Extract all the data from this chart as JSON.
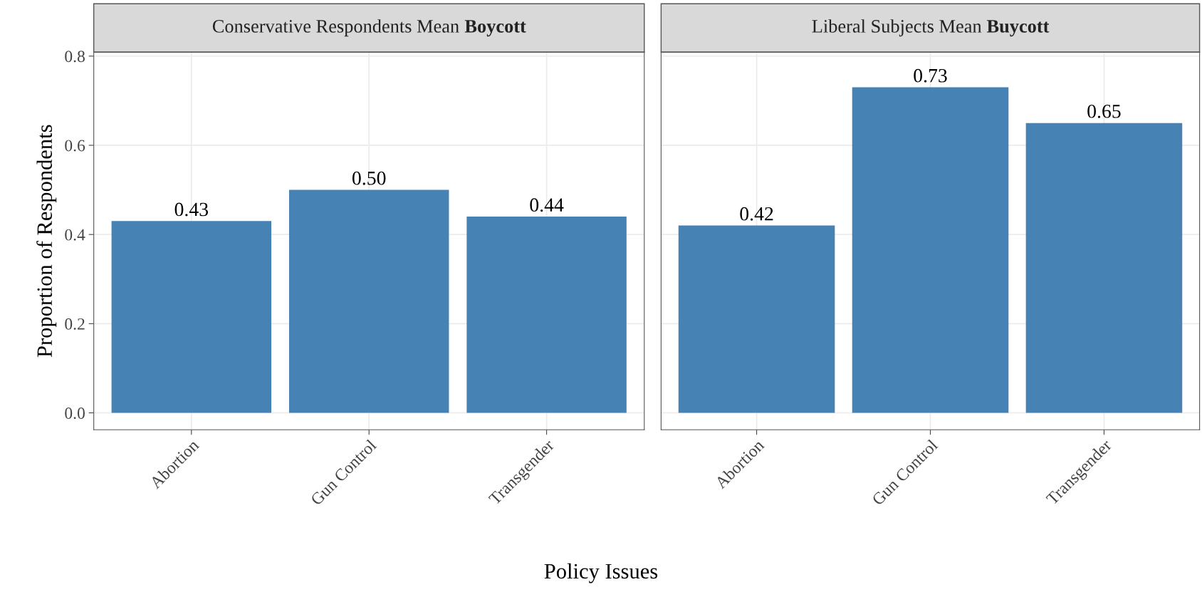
{
  "chart_data": [
    {
      "type": "bar",
      "title": "Conservative Respondents Mean Boycott",
      "xlabel": "Policy Issues",
      "ylabel": "Proportion of Respondents",
      "categories": [
        "Abortion",
        "Gun Control",
        "Transgender"
      ],
      "values": [
        0.43,
        0.5,
        0.44
      ],
      "color": "#4682b4",
      "ylim": [
        -0.038,
        0.809
      ],
      "yticks": [
        {
          "value": 0,
          "label": "0.0"
        },
        0.2,
        0.4,
        0.6,
        0.8
      ],
      "grid": true,
      "data_labels": true,
      "value_labels": [
        "0.43",
        "0.50",
        "0.44"
      ]
    },
    {
      "type": "bar",
      "title": "Liberal Subjects Mean Buycott",
      "categories": [
        "Abortion",
        "Gun Control",
        "Transgender"
      ],
      "values": [
        0.42,
        0.73,
        0.65
      ],
      "color": "#4682b4",
      "ylim": [
        -0.038,
        0.809
      ],
      "yticks": [
        {
          "value": 0,
          "label": null
        },
        {
          "value": 0.2,
          "label": null
        },
        {
          "value": 0.4,
          "label": null
        },
        {
          "value": 0.6,
          "label": null
        },
        {
          "value": 0.8,
          "label": null
        }
      ],
      "grid": true,
      "data_labels": true,
      "value_labels": [
        "0.42",
        "0.73",
        "0.65"
      ],
      "tick_labels": "x"
    }
  ]
}
